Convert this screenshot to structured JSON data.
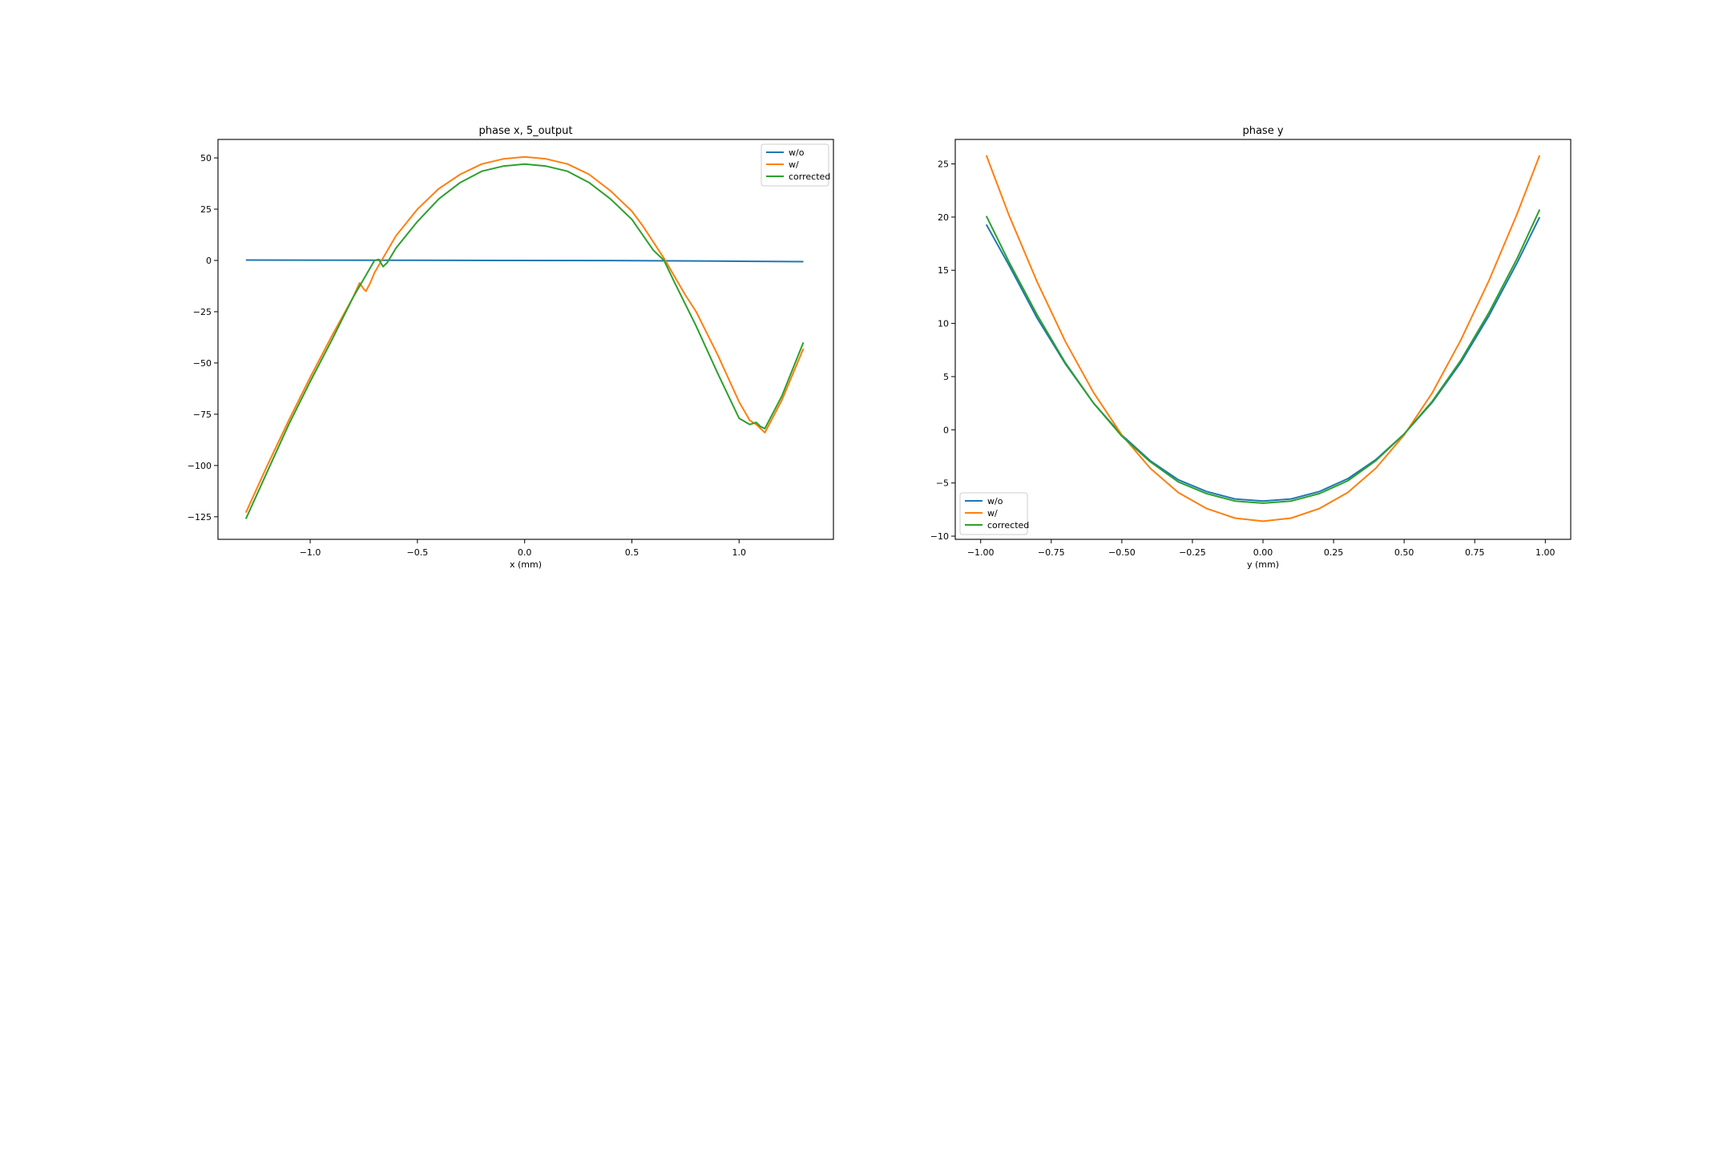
{
  "chart_data": [
    {
      "type": "line",
      "title": "phase x, 5_output",
      "xlabel": "x (mm)",
      "ylabel": "",
      "xlim": [
        -1.43,
        1.44
      ],
      "ylim": [
        -136,
        59
      ],
      "xticks": [
        -1.0,
        -0.5,
        0.0,
        0.5,
        1.0
      ],
      "xtick_labels": [
        "−1.0",
        "−0.5",
        "0.0",
        "0.5",
        "1.0"
      ],
      "yticks": [
        50,
        25,
        0,
        -25,
        -50,
        -75,
        -100,
        -125
      ],
      "ytick_labels": [
        "50",
        "25",
        "0",
        "−25",
        "−50",
        "−75",
        "−100",
        "−125"
      ],
      "grid": false,
      "legend_position": "upper right",
      "series": [
        {
          "name": "w/o",
          "color": "#1f77b4",
          "x": [
            -1.3,
            -0.5,
            0.0,
            0.5,
            1.0,
            1.3
          ],
          "y": [
            0.2,
            0.1,
            0.0,
            -0.1,
            -0.4,
            -0.6
          ]
        },
        {
          "name": "w/",
          "color": "#ff7f0e",
          "x": [
            -1.3,
            -1.2,
            -1.1,
            -1.0,
            -0.9,
            -0.8,
            -0.77,
            -0.75,
            -0.74,
            -0.72,
            -0.7,
            -0.65,
            -0.6,
            -0.5,
            -0.4,
            -0.3,
            -0.2,
            -0.1,
            0.0,
            0.1,
            0.2,
            0.3,
            0.4,
            0.5,
            0.55,
            0.6,
            0.65,
            0.7,
            0.75,
            0.8,
            0.9,
            1.0,
            1.05,
            1.08,
            1.1,
            1.12,
            1.15,
            1.2,
            1.3
          ],
          "y": [
            -123,
            -100,
            -78,
            -57,
            -37,
            -18,
            -11,
            -14,
            -15,
            -11,
            -6,
            3,
            12,
            25,
            35,
            42,
            47,
            49.5,
            50.5,
            49.5,
            47,
            42,
            34,
            24,
            17,
            9,
            1,
            -8,
            -17,
            -25,
            -46,
            -69,
            -78,
            -80,
            -82,
            -84,
            -78,
            -68,
            -43
          ]
        },
        {
          "name": "corrected",
          "color": "#2ca02c",
          "x": [
            -1.3,
            -1.2,
            -1.1,
            -1.0,
            -0.9,
            -0.8,
            -0.75,
            -0.7,
            -0.68,
            -0.66,
            -0.64,
            -0.6,
            -0.5,
            -0.4,
            -0.3,
            -0.2,
            -0.1,
            0.0,
            0.1,
            0.2,
            0.3,
            0.4,
            0.5,
            0.6,
            0.62,
            0.65,
            0.7,
            0.8,
            0.9,
            1.0,
            1.05,
            1.08,
            1.1,
            1.12,
            1.15,
            1.2,
            1.3
          ],
          "y": [
            -126,
            -103,
            -80,
            -59,
            -39,
            -18,
            -9,
            0,
            0.5,
            -3,
            -1,
            6,
            19,
            30,
            38,
            43.5,
            46,
            47,
            46,
            43.5,
            38,
            30,
            20,
            5,
            3,
            0,
            -11,
            -32,
            -55,
            -77,
            -80,
            -79,
            -81,
            -82,
            -76,
            -66,
            -40
          ]
        }
      ]
    },
    {
      "type": "line",
      "title": "phase y",
      "xlabel": "y (mm)",
      "ylabel": "",
      "xlim": [
        -1.09,
        1.09
      ],
      "ylim": [
        -10.3,
        27.3
      ],
      "xticks": [
        -1.0,
        -0.75,
        -0.5,
        -0.25,
        0.0,
        0.25,
        0.5,
        0.75,
        1.0
      ],
      "xtick_labels": [
        "−1.00",
        "−0.75",
        "−0.50",
        "−0.25",
        "0.00",
        "0.25",
        "0.50",
        "0.75",
        "1.00"
      ],
      "yticks": [
        25,
        20,
        15,
        10,
        5,
        0,
        -5,
        -10
      ],
      "ytick_labels": [
        "25",
        "20",
        "15",
        "10",
        "5",
        "0",
        "−5",
        "−10"
      ],
      "grid": false,
      "legend_position": "lower left",
      "series": [
        {
          "name": "w/o",
          "color": "#1f77b4",
          "x": [
            -0.98,
            -0.9,
            -0.8,
            -0.7,
            -0.6,
            -0.5,
            -0.4,
            -0.3,
            -0.2,
            -0.1,
            0.0,
            0.1,
            0.2,
            0.3,
            0.4,
            0.5,
            0.6,
            0.7,
            0.8,
            0.9,
            0.98
          ],
          "y": [
            19.3,
            15.5,
            10.5,
            6.2,
            2.5,
            -0.5,
            -2.9,
            -4.7,
            -5.8,
            -6.5,
            -6.7,
            -6.5,
            -5.8,
            -4.6,
            -2.8,
            -0.4,
            2.6,
            6.3,
            10.7,
            15.7,
            20.0
          ]
        },
        {
          "name": "w/",
          "color": "#ff7f0e",
          "x": [
            -0.98,
            -0.9,
            -0.8,
            -0.7,
            -0.6,
            -0.5,
            -0.4,
            -0.3,
            -0.2,
            -0.1,
            0.0,
            0.1,
            0.2,
            0.3,
            0.4,
            0.5,
            0.6,
            0.7,
            0.8,
            0.9,
            0.98
          ],
          "y": [
            25.8,
            20.2,
            13.9,
            8.3,
            3.5,
            -0.5,
            -3.6,
            -5.9,
            -7.4,
            -8.3,
            -8.6,
            -8.3,
            -7.4,
            -5.9,
            -3.6,
            -0.5,
            3.5,
            8.4,
            14.0,
            20.3,
            25.8
          ]
        },
        {
          "name": "corrected",
          "color": "#2ca02c",
          "x": [
            -0.98,
            -0.9,
            -0.8,
            -0.7,
            -0.6,
            -0.5,
            -0.4,
            -0.3,
            -0.2,
            -0.1,
            0.0,
            0.1,
            0.2,
            0.3,
            0.4,
            0.5,
            0.6,
            0.7,
            0.8,
            0.9,
            0.98
          ],
          "y": [
            20.1,
            15.8,
            10.8,
            6.3,
            2.5,
            -0.6,
            -3.0,
            -4.9,
            -6.0,
            -6.7,
            -6.9,
            -6.7,
            -6.0,
            -4.8,
            -2.9,
            -0.4,
            2.7,
            6.5,
            11.0,
            16.1,
            20.7
          ]
        }
      ]
    }
  ]
}
